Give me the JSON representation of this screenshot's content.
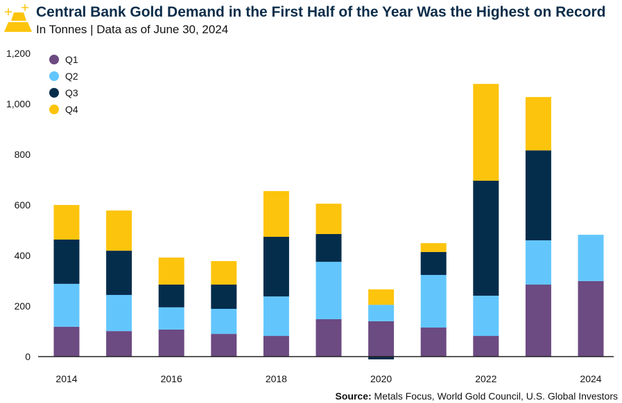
{
  "header": {
    "title": "Central Bank Gold Demand in the First Half of the Year Was the Highest on Record",
    "subtitle": "In Tonnes | Data as of June 30, 2024",
    "logo_icon": "gold-bars-icon"
  },
  "footer": {
    "source_label": "Source:",
    "source_text": " Metals Focus, World Gold Council, U.S. Global Investors"
  },
  "chart_data": {
    "type": "bar",
    "stacked": true,
    "title": "Central Bank Gold Demand in the First Half of the Year Was the Highest on Record",
    "subtitle": "In Tonnes | Data as of June 30, 2024",
    "categories": [
      "2014",
      "2015",
      "2016",
      "2017",
      "2018",
      "2019",
      "2020",
      "2021",
      "2022",
      "2023",
      "2024"
    ],
    "xtick_labels": [
      "2014",
      "2016",
      "2018",
      "2020",
      "2022",
      "2024"
    ],
    "ylim": [
      0,
      1200
    ],
    "yticks": [
      0,
      200,
      400,
      600,
      800,
      1000,
      1200
    ],
    "ytick_labels": [
      "0",
      "200",
      "400",
      "600",
      "800",
      "1,000",
      "1,200"
    ],
    "legend_position": "top-left",
    "grid": false,
    "series": [
      {
        "name": "Q1",
        "color": "#6c4a82",
        "values": [
          118,
          101,
          107,
          90,
          82,
          148,
          140,
          115,
          82,
          285,
          299
        ]
      },
      {
        "name": "Q2",
        "color": "#62c6fd",
        "values": [
          170,
          143,
          88,
          99,
          156,
          227,
          65,
          208,
          159,
          175,
          183
        ]
      },
      {
        "name": "Q3",
        "color": "#042d4c",
        "values": [
          175,
          175,
          90,
          96,
          236,
          110,
          -11,
          91,
          455,
          356,
          null
        ]
      },
      {
        "name": "Q4",
        "color": "#fdc40d",
        "values": [
          137,
          159,
          107,
          93,
          181,
          120,
          61,
          35,
          383,
          211,
          null
        ]
      }
    ]
  }
}
